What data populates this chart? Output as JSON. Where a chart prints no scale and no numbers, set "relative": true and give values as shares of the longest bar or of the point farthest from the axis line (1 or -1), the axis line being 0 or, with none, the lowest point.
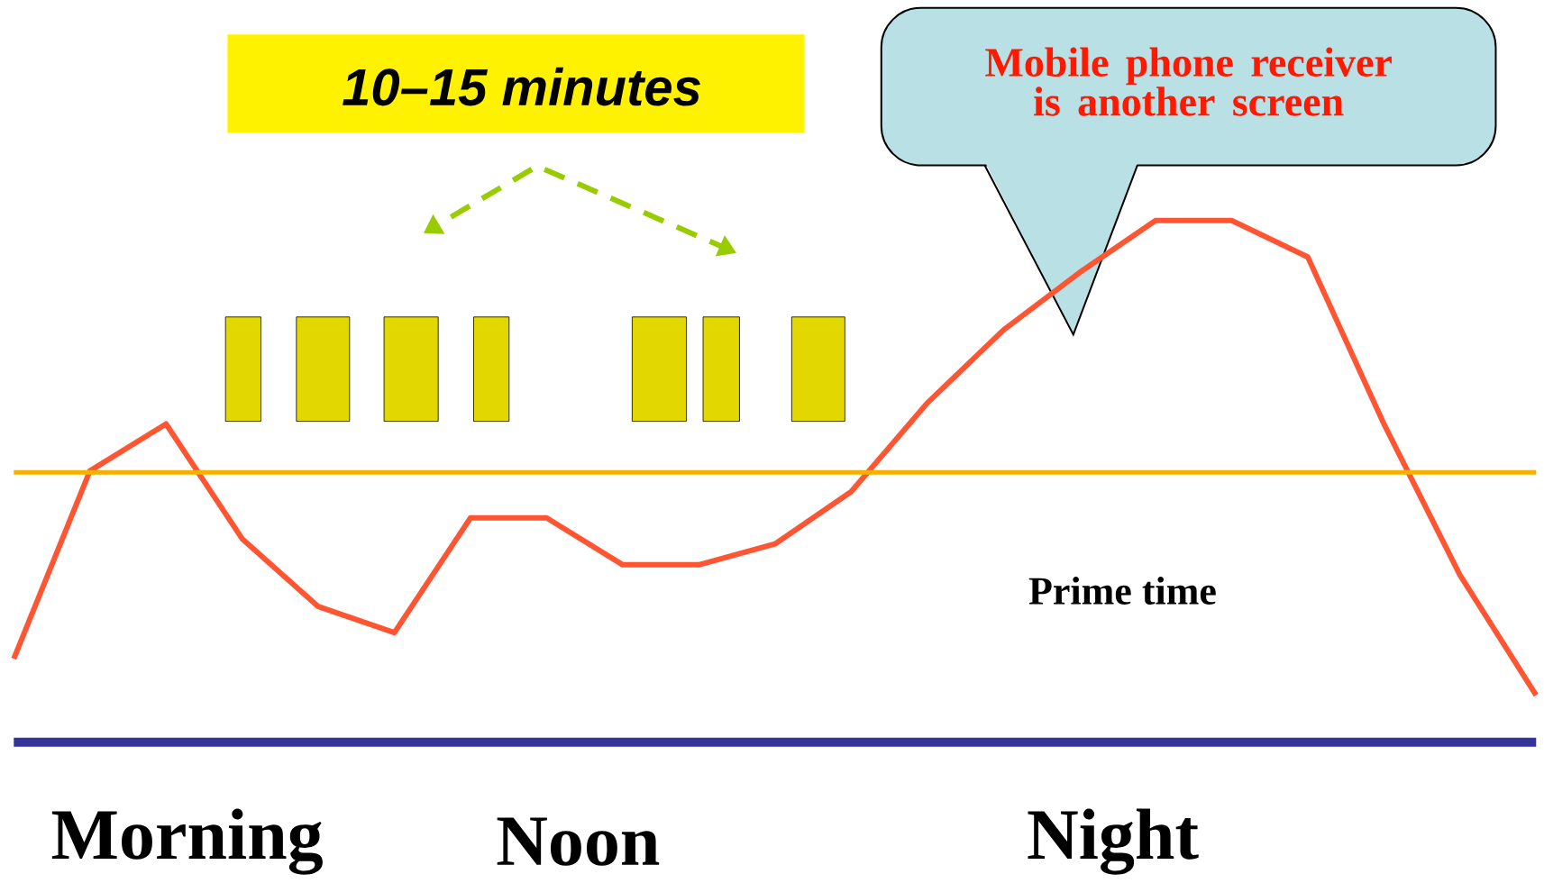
{
  "chart_data": {
    "type": "line",
    "relative": true,
    "categories": [
      null,
      null,
      null,
      null,
      null,
      null,
      null,
      null,
      null,
      null,
      null,
      null,
      null,
      null,
      null,
      null,
      null,
      null,
      null,
      null,
      null
    ],
    "series": [
      {
        "color": "#ff5533",
        "values": [
          0.16,
          0.52,
          0.61,
          0.39,
          0.26,
          0.21,
          0.43,
          0.43,
          0.34,
          0.34,
          0.38,
          0.48,
          0.65,
          0.79,
          0.9,
          1,
          1,
          0.93,
          0.61,
          0.32,
          0.09
        ]
      }
    ],
    "ref_lines": [
      {
        "axis": "y",
        "value": 0.517,
        "color": "#f5b000"
      }
    ],
    "annotations": [
      "Morning",
      "Noon",
      "Night",
      "Prime time",
      "10–15 minutes",
      "Mobile phone receiver is another screen"
    ]
  }
}
